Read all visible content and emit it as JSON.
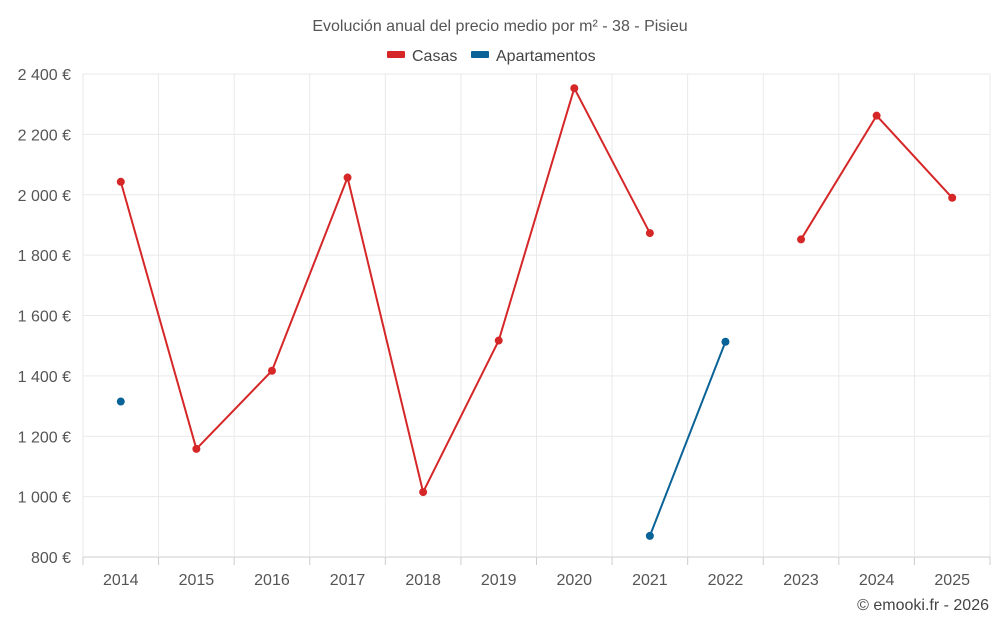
{
  "chart_data": {
    "type": "line",
    "title": "Evolución anual del precio medio por m² - 38 - Pisieu",
    "credit": "© emooki.fr - 2026",
    "categories": [
      "2014",
      "2015",
      "2016",
      "2017",
      "2018",
      "2019",
      "2020",
      "2021",
      "2022",
      "2023",
      "2024",
      "2025"
    ],
    "y_ticks": [
      800,
      1000,
      1200,
      1400,
      1600,
      1800,
      2000,
      2200,
      2400
    ],
    "y_tick_labels": [
      "800 €",
      "1 000 €",
      "1 200 €",
      "1 400 €",
      "1 600 €",
      "1 800 €",
      "2 000 €",
      "2 200 €",
      "2 400 €"
    ],
    "ylim": [
      800,
      2400
    ],
    "grid": true,
    "legend_position": "top-center",
    "series": [
      {
        "name": "Casas",
        "color": "#d62728",
        "values": [
          2043,
          1158,
          1417,
          2057,
          1015,
          1517,
          2353,
          1873,
          null,
          1852,
          2262,
          1990
        ]
      },
      {
        "name": "Apartamentos",
        "color": "#0a6396",
        "values": [
          1315,
          null,
          null,
          null,
          null,
          null,
          null,
          870,
          1513,
          null,
          null,
          null
        ]
      }
    ]
  }
}
